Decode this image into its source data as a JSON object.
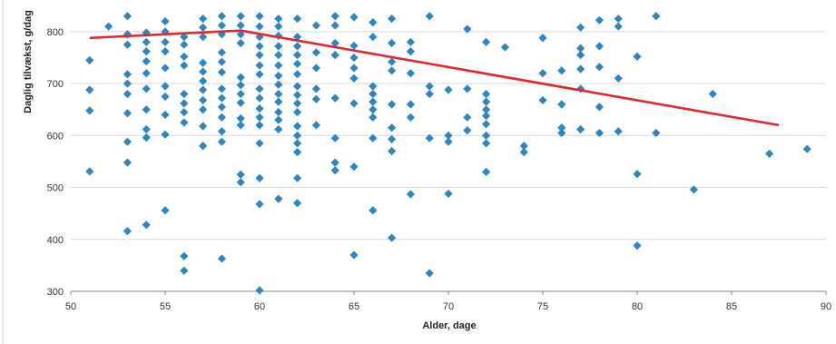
{
  "chart_data": {
    "type": "scatter",
    "title": "",
    "xlabel": "Alder, dage",
    "ylabel": "Daglig tilvækst, g/dag",
    "xlim": [
      50,
      90
    ],
    "ylim": [
      300,
      840
    ],
    "x_ticks": [
      50,
      55,
      60,
      65,
      70,
      75,
      80,
      85,
      90
    ],
    "y_ticks": [
      300,
      400,
      500,
      600,
      700,
      800
    ],
    "grid": true,
    "legend": "none",
    "colors": {
      "points": "#2e86c1",
      "trend": "#e0282e",
      "grid": "#d9d9d9"
    },
    "series": [
      {
        "type": "scatter",
        "points": [
          [
            51,
            745
          ],
          [
            51,
            688
          ],
          [
            51,
            648
          ],
          [
            51,
            531
          ],
          [
            52,
            810
          ],
          [
            53,
            830
          ],
          [
            53,
            795
          ],
          [
            53,
            775
          ],
          [
            53,
            718
          ],
          [
            53,
            700
          ],
          [
            53,
            680
          ],
          [
            53,
            643
          ],
          [
            53,
            588
          ],
          [
            53,
            548
          ],
          [
            53,
            416
          ],
          [
            54,
            798
          ],
          [
            54,
            780
          ],
          [
            54,
            762
          ],
          [
            54,
            743
          ],
          [
            54,
            720
          ],
          [
            54,
            690
          ],
          [
            54,
            650
          ],
          [
            54,
            612
          ],
          [
            54,
            596
          ],
          [
            54,
            428
          ],
          [
            55,
            820
          ],
          [
            55,
            800
          ],
          [
            55,
            780
          ],
          [
            55,
            762
          ],
          [
            55,
            730
          ],
          [
            55,
            695
          ],
          [
            55,
            675
          ],
          [
            55,
            640
          ],
          [
            55,
            602
          ],
          [
            55,
            456
          ],
          [
            56,
            790
          ],
          [
            56,
            775
          ],
          [
            56,
            752
          ],
          [
            56,
            735
          ],
          [
            56,
            680
          ],
          [
            56,
            662
          ],
          [
            56,
            645
          ],
          [
            56,
            625
          ],
          [
            56,
            368
          ],
          [
            56,
            340
          ],
          [
            57,
            825
          ],
          [
            57,
            808
          ],
          [
            57,
            790
          ],
          [
            57,
            740
          ],
          [
            57,
            723
          ],
          [
            57,
            705
          ],
          [
            57,
            688
          ],
          [
            57,
            668
          ],
          [
            57,
            650
          ],
          [
            57,
            618
          ],
          [
            57,
            580
          ],
          [
            58,
            830
          ],
          [
            58,
            812
          ],
          [
            58,
            795
          ],
          [
            58,
            760
          ],
          [
            58,
            742
          ],
          [
            58,
            722
          ],
          [
            58,
            690
          ],
          [
            58,
            672
          ],
          [
            58,
            655
          ],
          [
            58,
            635
          ],
          [
            58,
            608
          ],
          [
            58,
            588
          ],
          [
            58,
            363
          ],
          [
            59,
            830
          ],
          [
            59,
            812
          ],
          [
            59,
            795
          ],
          [
            59,
            778
          ],
          [
            59,
            712
          ],
          [
            59,
            697
          ],
          [
            59,
            680
          ],
          [
            59,
            663
          ],
          [
            59,
            633
          ],
          [
            59,
            620
          ],
          [
            59,
            525
          ],
          [
            59,
            510
          ],
          [
            60,
            830
          ],
          [
            60,
            810
          ],
          [
            60,
            790
          ],
          [
            60,
            772
          ],
          [
            60,
            755
          ],
          [
            60,
            735
          ],
          [
            60,
            718
          ],
          [
            60,
            690
          ],
          [
            60,
            672
          ],
          [
            60,
            652
          ],
          [
            60,
            635
          ],
          [
            60,
            620
          ],
          [
            60,
            585
          ],
          [
            60,
            518
          ],
          [
            60,
            468
          ],
          [
            60,
            302
          ],
          [
            61,
            825
          ],
          [
            61,
            810
          ],
          [
            61,
            792
          ],
          [
            61,
            772
          ],
          [
            61,
            755
          ],
          [
            61,
            735
          ],
          [
            61,
            715
          ],
          [
            61,
            698
          ],
          [
            61,
            680
          ],
          [
            61,
            665
          ],
          [
            61,
            645
          ],
          [
            61,
            630
          ],
          [
            61,
            612
          ],
          [
            61,
            478
          ],
          [
            62,
            825
          ],
          [
            62,
            790
          ],
          [
            62,
            772
          ],
          [
            62,
            755
          ],
          [
            62,
            738
          ],
          [
            62,
            718
          ],
          [
            62,
            695
          ],
          [
            62,
            678
          ],
          [
            62,
            662
          ],
          [
            62,
            645
          ],
          [
            62,
            618
          ],
          [
            62,
            600
          ],
          [
            62,
            585
          ],
          [
            62,
            568
          ],
          [
            62,
            518
          ],
          [
            62,
            470
          ],
          [
            63,
            812
          ],
          [
            63,
            760
          ],
          [
            63,
            730
          ],
          [
            63,
            690
          ],
          [
            63,
            670
          ],
          [
            63,
            620
          ],
          [
            64,
            830
          ],
          [
            64,
            812
          ],
          [
            64,
            778
          ],
          [
            64,
            755
          ],
          [
            64,
            672
          ],
          [
            64,
            595
          ],
          [
            64,
            548
          ],
          [
            64,
            533
          ],
          [
            65,
            828
          ],
          [
            65,
            773
          ],
          [
            65,
            750
          ],
          [
            65,
            730
          ],
          [
            65,
            710
          ],
          [
            65,
            662
          ],
          [
            65,
            540
          ],
          [
            65,
            370
          ],
          [
            66,
            818
          ],
          [
            66,
            790
          ],
          [
            66,
            695
          ],
          [
            66,
            680
          ],
          [
            66,
            665
          ],
          [
            66,
            650
          ],
          [
            66,
            635
          ],
          [
            66,
            595
          ],
          [
            66,
            456
          ],
          [
            67,
            825
          ],
          [
            67,
            778
          ],
          [
            67,
            742
          ],
          [
            67,
            725
          ],
          [
            67,
            660
          ],
          [
            67,
            615
          ],
          [
            67,
            593
          ],
          [
            67,
            570
          ],
          [
            67,
            403
          ],
          [
            68,
            780
          ],
          [
            68,
            762
          ],
          [
            68,
            720
          ],
          [
            68,
            660
          ],
          [
            68,
            635
          ],
          [
            68,
            487
          ],
          [
            69,
            830
          ],
          [
            69,
            695
          ],
          [
            69,
            680
          ],
          [
            69,
            595
          ],
          [
            69,
            335
          ],
          [
            70,
            688
          ],
          [
            70,
            600
          ],
          [
            70,
            588
          ],
          [
            70,
            488
          ],
          [
            71,
            805
          ],
          [
            71,
            690
          ],
          [
            71,
            635
          ],
          [
            71,
            610
          ],
          [
            72,
            780
          ],
          [
            72,
            680
          ],
          [
            72,
            665
          ],
          [
            72,
            650
          ],
          [
            72,
            638
          ],
          [
            72,
            622
          ],
          [
            72,
            600
          ],
          [
            72,
            585
          ],
          [
            72,
            530
          ],
          [
            73,
            770
          ],
          [
            74,
            580
          ],
          [
            74,
            568
          ],
          [
            75,
            788
          ],
          [
            75,
            720
          ],
          [
            75,
            668
          ],
          [
            76,
            725
          ],
          [
            76,
            660
          ],
          [
            76,
            615
          ],
          [
            76,
            605
          ],
          [
            77,
            808
          ],
          [
            77,
            768
          ],
          [
            77,
            755
          ],
          [
            77,
            728
          ],
          [
            77,
            690
          ],
          [
            77,
            612
          ],
          [
            78,
            822
          ],
          [
            78,
            772
          ],
          [
            78,
            732
          ],
          [
            78,
            655
          ],
          [
            78,
            605
          ],
          [
            79,
            825
          ],
          [
            79,
            810
          ],
          [
            79,
            710
          ],
          [
            79,
            608
          ],
          [
            80,
            752
          ],
          [
            80,
            526
          ],
          [
            80,
            388
          ],
          [
            81,
            830
          ],
          [
            81,
            605
          ],
          [
            83,
            496
          ],
          [
            84,
            680
          ],
          [
            87,
            565
          ],
          [
            89,
            574
          ]
        ]
      },
      {
        "type": "line",
        "points": [
          [
            51,
            788
          ],
          [
            59,
            802
          ],
          [
            87.5,
            620
          ]
        ]
      }
    ]
  }
}
